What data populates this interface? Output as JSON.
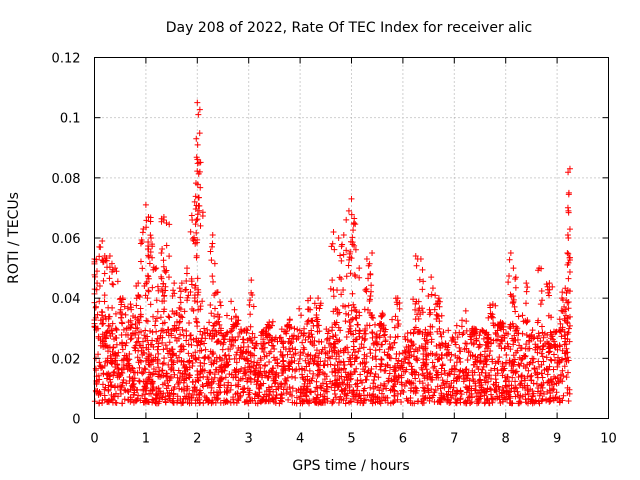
{
  "chart_data": {
    "type": "scatter",
    "title": "Day 208 of 2022, Rate Of TEC Index for receiver alic",
    "xlabel": "GPS time / hours",
    "ylabel": "ROTI / TECUs",
    "xlim": [
      0,
      10
    ],
    "ylim": [
      0,
      0.12
    ],
    "xticks": [
      0,
      1,
      2,
      3,
      4,
      5,
      6,
      7,
      8,
      9,
      10
    ],
    "xtick_labels": [
      "0",
      "1",
      "2",
      "3",
      "4",
      "5",
      "6",
      "7",
      "8",
      "9",
      "10"
    ],
    "yticks": [
      0,
      0.02,
      0.04,
      0.06,
      0.08,
      0.1,
      0.12
    ],
    "ytick_labels": [
      "0",
      "0.02",
      "0.04",
      "0.06",
      "0.08",
      "0.1",
      "0.12"
    ],
    "grid": true,
    "marker": "+",
    "color": "#ff0000",
    "series": [
      {
        "name": "ROTI",
        "x_range": [
          0,
          9.25
        ],
        "baseline_range": [
          0.005,
          0.03
        ],
        "peaks": [
          [
            0.0,
            0.053
          ],
          [
            0.05,
            0.045
          ],
          [
            0.15,
            0.059
          ],
          [
            0.2,
            0.054
          ],
          [
            0.3,
            0.054
          ],
          [
            0.4,
            0.05
          ],
          [
            0.55,
            0.04
          ],
          [
            0.7,
            0.038
          ],
          [
            0.85,
            0.045
          ],
          [
            0.95,
            0.063
          ],
          [
            1.0,
            0.071
          ],
          [
            1.05,
            0.067
          ],
          [
            1.1,
            0.06
          ],
          [
            1.2,
            0.05
          ],
          [
            1.3,
            0.055
          ],
          [
            1.35,
            0.067
          ],
          [
            1.4,
            0.065
          ],
          [
            1.55,
            0.045
          ],
          [
            1.7,
            0.045
          ],
          [
            1.8,
            0.05
          ],
          [
            1.9,
            0.066
          ],
          [
            1.95,
            0.072
          ],
          [
            1.98,
            0.093
          ],
          [
            2.0,
            0.105
          ],
          [
            2.02,
            0.101
          ],
          [
            2.05,
            0.082
          ],
          [
            2.3,
            0.061
          ],
          [
            2.4,
            0.042
          ],
          [
            2.75,
            0.034
          ],
          [
            3.05,
            0.046
          ],
          [
            3.4,
            0.032
          ],
          [
            3.8,
            0.033
          ],
          [
            4.2,
            0.04
          ],
          [
            4.35,
            0.04
          ],
          [
            4.65,
            0.062
          ],
          [
            4.75,
            0.06
          ],
          [
            4.85,
            0.061
          ],
          [
            4.95,
            0.069
          ],
          [
            5.0,
            0.073
          ],
          [
            5.05,
            0.065
          ],
          [
            5.15,
            0.05
          ],
          [
            5.3,
            0.053
          ],
          [
            5.4,
            0.055
          ],
          [
            5.6,
            0.035
          ],
          [
            5.9,
            0.04
          ],
          [
            6.25,
            0.054
          ],
          [
            6.35,
            0.053
          ],
          [
            6.55,
            0.047
          ],
          [
            6.7,
            0.04
          ],
          [
            7.35,
            0.028
          ],
          [
            7.75,
            0.038
          ],
          [
            7.9,
            0.032
          ],
          [
            8.1,
            0.055
          ],
          [
            8.15,
            0.05
          ],
          [
            8.4,
            0.045
          ],
          [
            8.65,
            0.05
          ],
          [
            8.85,
            0.045
          ],
          [
            9.1,
            0.042
          ],
          [
            9.2,
            0.055
          ],
          [
            9.22,
            0.069
          ],
          [
            9.23,
            0.075
          ],
          [
            9.25,
            0.083
          ]
        ]
      }
    ]
  }
}
